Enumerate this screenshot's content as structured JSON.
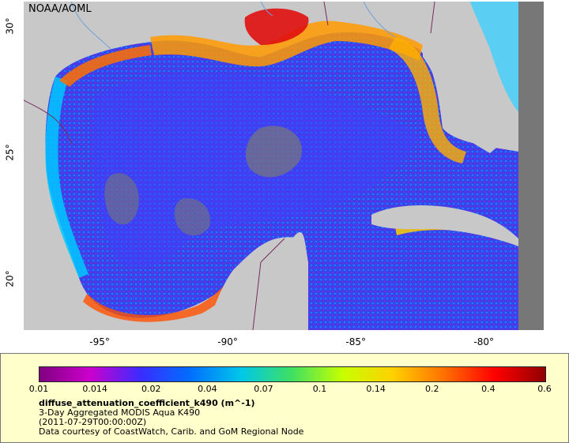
{
  "attribution": "NOAA/AOML",
  "axes": {
    "longitude_ticks": [
      {
        "value": -95,
        "label": "-95°"
      },
      {
        "value": -90,
        "label": "-90°"
      },
      {
        "value": -85,
        "label": "-85°"
      },
      {
        "value": -80,
        "label": "-80°"
      }
    ],
    "latitude_ticks": [
      {
        "value": 30,
        "label": "30°"
      },
      {
        "value": 25,
        "label": "25°"
      },
      {
        "value": 20,
        "label": "20°"
      }
    ],
    "lon_range": [
      -98,
      -77.7
    ],
    "lat_range": [
      18,
      31
    ]
  },
  "legend": {
    "colorbar_ticks": [
      "0.01",
      "0.014",
      "0.02",
      "0.04",
      "0.07",
      "0.1",
      "0.14",
      "0.2",
      "0.4",
      "0.6"
    ],
    "colorbar_colors": [
      "#800080",
      "#cc00cc",
      "#3a2cff",
      "#0070ff",
      "#00c8e8",
      "#40e060",
      "#c8ff00",
      "#ffd000",
      "#ff7000",
      "#ff0000",
      "#900000"
    ],
    "title": "diffuse_attenuation_coefficient_k490 (m^-1)",
    "line1": "3-Day Aggregated MODIS Aqua K490",
    "line2": "(2011-07-29T00:00:00Z)",
    "line3": "Data courtesy of CoastWatch, Carib. and GoM Regional Node"
  },
  "colors": {
    "land": "#c8c8c8",
    "nodata": "#777777",
    "border": "#7a2a5a",
    "river": "#6fa0d8",
    "legend_bg": "#ffffcc"
  }
}
